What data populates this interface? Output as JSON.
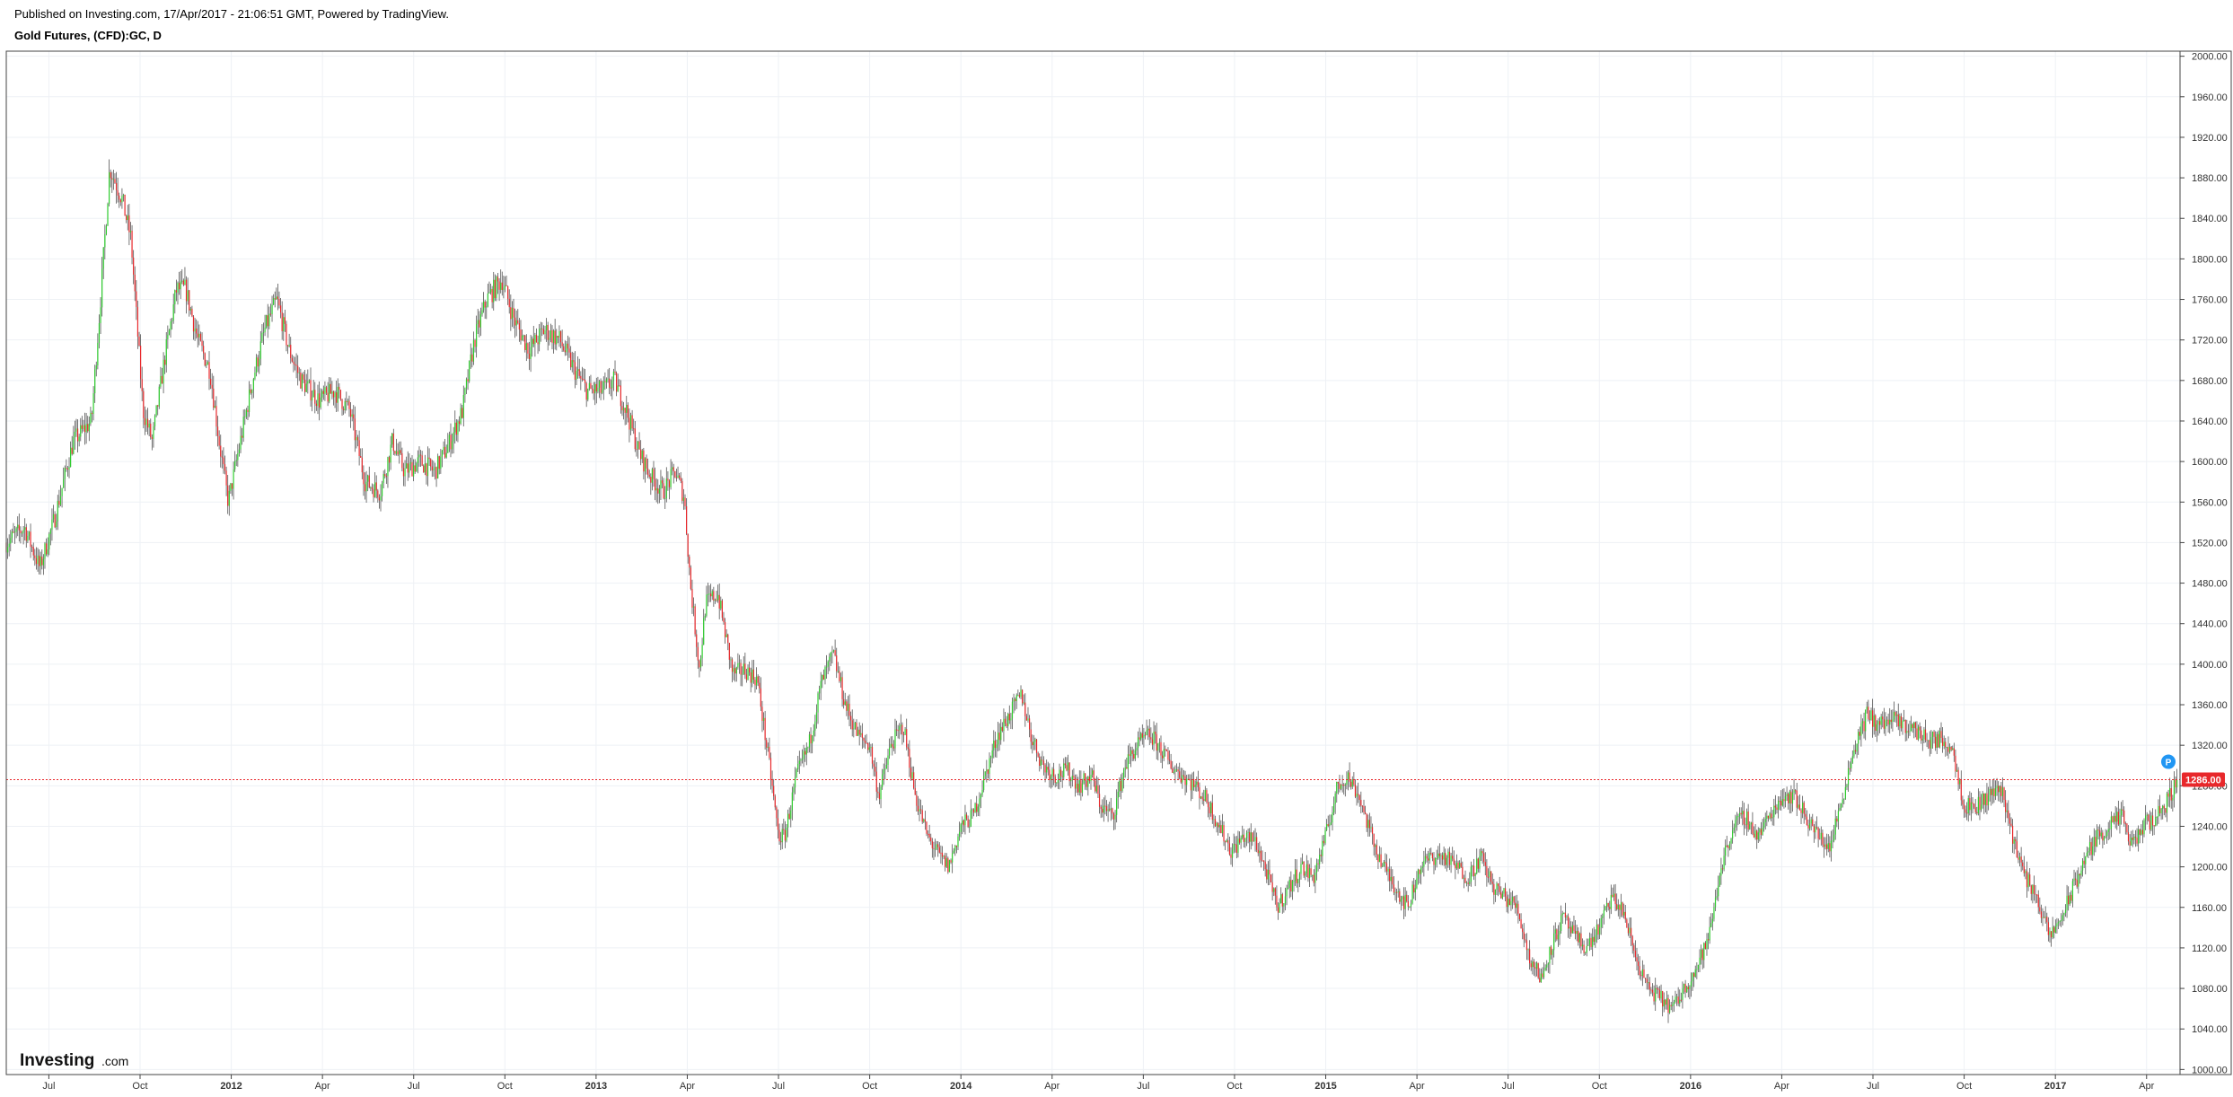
{
  "header": {
    "published": "Published on Investing.com, 17/Apr/2017 - 21:06:51 GMT, Powered by TradingView.",
    "symbol": "Gold Futures, (CFD):GC, D"
  },
  "logo": {
    "main": "Investing",
    "sub": ".com"
  },
  "colors": {
    "up": "#2ecc2e",
    "down": "#e8282b",
    "grid": "#eef1f5",
    "axis": "#444444",
    "price_line": "#e8282b",
    "badge": "#2196f3"
  },
  "chart_data": {
    "type": "candlestick",
    "title": "Gold Futures, (CFD):GC, D",
    "y_ticks": [
      "1000.00",
      "1040.00",
      "1080.00",
      "1120.00",
      "1160.00",
      "1200.00",
      "1240.00",
      "1280.00",
      "1320.00",
      "1360.00",
      "1400.00",
      "1440.00",
      "1480.00",
      "1520.00",
      "1560.00",
      "1600.00",
      "1640.00",
      "1680.00",
      "1720.00",
      "1760.00",
      "1800.00",
      "1840.00",
      "1880.00",
      "1920.00",
      "1960.00",
      "2000.00"
    ],
    "ylim": [
      995,
      2005
    ],
    "x_ticks": [
      {
        "label": "Jul",
        "t": 0.5,
        "year": false
      },
      {
        "label": "Oct",
        "t": 3.5,
        "year": false
      },
      {
        "label": "2012",
        "t": 6.5,
        "year": true
      },
      {
        "label": "Apr",
        "t": 9.5,
        "year": false
      },
      {
        "label": "Jul",
        "t": 12.5,
        "year": false
      },
      {
        "label": "Oct",
        "t": 15.5,
        "year": false
      },
      {
        "label": "2013",
        "t": 18.5,
        "year": true
      },
      {
        "label": "Apr",
        "t": 21.5,
        "year": false
      },
      {
        "label": "Jul",
        "t": 24.5,
        "year": false
      },
      {
        "label": "Oct",
        "t": 27.5,
        "year": false
      },
      {
        "label": "2014",
        "t": 30.5,
        "year": true
      },
      {
        "label": "Apr",
        "t": 33.5,
        "year": false
      },
      {
        "label": "Jul",
        "t": 36.5,
        "year": false
      },
      {
        "label": "Oct",
        "t": 39.5,
        "year": false
      },
      {
        "label": "2015",
        "t": 42.5,
        "year": true
      },
      {
        "label": "Apr",
        "t": 45.5,
        "year": false
      },
      {
        "label": "Jul",
        "t": 48.5,
        "year": false
      },
      {
        "label": "Oct",
        "t": 51.5,
        "year": false
      },
      {
        "label": "2016",
        "t": 54.5,
        "year": true
      },
      {
        "label": "Apr",
        "t": 57.5,
        "year": false
      },
      {
        "label": "Jul",
        "t": 60.5,
        "year": false
      },
      {
        "label": "Oct",
        "t": 63.5,
        "year": false
      },
      {
        "label": "2017",
        "t": 66.5,
        "year": true
      },
      {
        "label": "Apr",
        "t": 69.5,
        "year": false
      }
    ],
    "xlim": [
      -0.9,
      70.6
    ],
    "price_trajectory": [
      [
        -0.9,
        1520
      ],
      [
        -0.3,
        1535
      ],
      [
        0.2,
        1495
      ],
      [
        0.7,
        1545
      ],
      [
        1.3,
        1620
      ],
      [
        1.9,
        1640
      ],
      [
        2.2,
        1760
      ],
      [
        2.5,
        1890
      ],
      [
        2.9,
        1860
      ],
      [
        3.2,
        1820
      ],
      [
        3.6,
        1650
      ],
      [
        3.9,
        1620
      ],
      [
        4.3,
        1700
      ],
      [
        4.7,
        1770
      ],
      [
        5.0,
        1770
      ],
      [
        5.4,
        1720
      ],
      [
        5.8,
        1690
      ],
      [
        6.1,
        1620
      ],
      [
        6.4,
        1560
      ],
      [
        6.8,
        1620
      ],
      [
        7.2,
        1680
      ],
      [
        7.6,
        1730
      ],
      [
        8.0,
        1760
      ],
      [
        8.4,
        1710
      ],
      [
        8.8,
        1680
      ],
      [
        9.4,
        1660
      ],
      [
        9.9,
        1670
      ],
      [
        10.4,
        1650
      ],
      [
        10.9,
        1580
      ],
      [
        11.4,
        1570
      ],
      [
        11.8,
        1620
      ],
      [
        12.2,
        1590
      ],
      [
        12.7,
        1600
      ],
      [
        13.2,
        1590
      ],
      [
        13.7,
        1620
      ],
      [
        14.1,
        1650
      ],
      [
        14.5,
        1720
      ],
      [
        14.9,
        1760
      ],
      [
        15.4,
        1780
      ],
      [
        15.8,
        1740
      ],
      [
        16.3,
        1710
      ],
      [
        16.8,
        1730
      ],
      [
        17.3,
        1720
      ],
      [
        17.8,
        1690
      ],
      [
        18.2,
        1670
      ],
      [
        18.7,
        1670
      ],
      [
        19.1,
        1680
      ],
      [
        19.5,
        1650
      ],
      [
        19.9,
        1610
      ],
      [
        20.3,
        1585
      ],
      [
        20.7,
        1570
      ],
      [
        21.1,
        1590
      ],
      [
        21.4,
        1565
      ],
      [
        21.6,
        1480
      ],
      [
        21.9,
        1395
      ],
      [
        22.1,
        1460
      ],
      [
        22.5,
        1470
      ],
      [
        23.0,
        1390
      ],
      [
        23.4,
        1395
      ],
      [
        23.8,
        1385
      ],
      [
        24.2,
        1300
      ],
      [
        24.5,
        1230
      ],
      [
        24.7,
        1230
      ],
      [
        25.1,
        1290
      ],
      [
        25.5,
        1320
      ],
      [
        25.9,
        1380
      ],
      [
        26.3,
        1410
      ],
      [
        26.7,
        1360
      ],
      [
        27.1,
        1330
      ],
      [
        27.5,
        1320
      ],
      [
        27.8,
        1270
      ],
      [
        28.2,
        1320
      ],
      [
        28.6,
        1340
      ],
      [
        29.0,
        1270
      ],
      [
        29.4,
        1230
      ],
      [
        29.8,
        1210
      ],
      [
        30.1,
        1200
      ],
      [
        30.5,
        1240
      ],
      [
        30.9,
        1250
      ],
      [
        31.3,
        1290
      ],
      [
        31.7,
        1330
      ],
      [
        32.1,
        1350
      ],
      [
        32.5,
        1370
      ],
      [
        32.8,
        1330
      ],
      [
        33.2,
        1300
      ],
      [
        33.6,
        1290
      ],
      [
        34.0,
        1295
      ],
      [
        34.4,
        1280
      ],
      [
        34.8,
        1290
      ],
      [
        35.1,
        1260
      ],
      [
        35.5,
        1250
      ],
      [
        35.9,
        1300
      ],
      [
        36.3,
        1320
      ],
      [
        36.7,
        1330
      ],
      [
        37.0,
        1320
      ],
      [
        37.4,
        1300
      ],
      [
        37.8,
        1290
      ],
      [
        38.2,
        1280
      ],
      [
        38.6,
        1265
      ],
      [
        39.0,
        1240
      ],
      [
        39.4,
        1215
      ],
      [
        39.8,
        1230
      ],
      [
        40.2,
        1225
      ],
      [
        40.6,
        1190
      ],
      [
        40.9,
        1160
      ],
      [
        41.3,
        1180
      ],
      [
        41.7,
        1200
      ],
      [
        42.1,
        1190
      ],
      [
        42.5,
        1230
      ],
      [
        42.9,
        1280
      ],
      [
        43.2,
        1290
      ],
      [
        43.6,
        1270
      ],
      [
        44.0,
        1230
      ],
      [
        44.4,
        1200
      ],
      [
        44.8,
        1180
      ],
      [
        45.2,
        1160
      ],
      [
        45.6,
        1200
      ],
      [
        46.0,
        1210
      ],
      [
        46.4,
        1210
      ],
      [
        46.8,
        1200
      ],
      [
        47.2,
        1190
      ],
      [
        47.6,
        1210
      ],
      [
        48.0,
        1180
      ],
      [
        48.4,
        1170
      ],
      [
        48.8,
        1160
      ],
      [
        49.2,
        1110
      ],
      [
        49.6,
        1090
      ],
      [
        49.9,
        1120
      ],
      [
        50.3,
        1150
      ],
      [
        50.7,
        1130
      ],
      [
        51.1,
        1120
      ],
      [
        51.5,
        1140
      ],
      [
        51.9,
        1170
      ],
      [
        52.3,
        1155
      ],
      [
        52.7,
        1110
      ],
      [
        53.1,
        1080
      ],
      [
        53.5,
        1070
      ],
      [
        53.9,
        1060
      ],
      [
        54.3,
        1080
      ],
      [
        54.7,
        1100
      ],
      [
        55.1,
        1130
      ],
      [
        55.5,
        1200
      ],
      [
        55.9,
        1240
      ],
      [
        56.3,
        1250
      ],
      [
        56.7,
        1230
      ],
      [
        57.1,
        1250
      ],
      [
        57.5,
        1270
      ],
      [
        57.9,
        1270
      ],
      [
        58.3,
        1250
      ],
      [
        58.7,
        1230
      ],
      [
        59.1,
        1220
      ],
      [
        59.5,
        1270
      ],
      [
        59.9,
        1320
      ],
      [
        60.3,
        1350
      ],
      [
        60.7,
        1340
      ],
      [
        61.1,
        1345
      ],
      [
        61.5,
        1340
      ],
      [
        61.9,
        1335
      ],
      [
        62.3,
        1325
      ],
      [
        62.7,
        1325
      ],
      [
        63.1,
        1320
      ],
      [
        63.5,
        1260
      ],
      [
        63.9,
        1260
      ],
      [
        64.3,
        1270
      ],
      [
        64.7,
        1280
      ],
      [
        65.1,
        1230
      ],
      [
        65.5,
        1190
      ],
      [
        65.9,
        1170
      ],
      [
        66.3,
        1130
      ],
      [
        66.7,
        1150
      ],
      [
        67.1,
        1180
      ],
      [
        67.5,
        1210
      ],
      [
        67.9,
        1230
      ],
      [
        68.3,
        1240
      ],
      [
        68.7,
        1250
      ],
      [
        69.0,
        1220
      ],
      [
        69.4,
        1240
      ],
      [
        69.8,
        1250
      ],
      [
        70.2,
        1265
      ],
      [
        70.5,
        1286
      ]
    ],
    "last_price": "1286.00",
    "last_value": 1286,
    "badge": "P"
  }
}
